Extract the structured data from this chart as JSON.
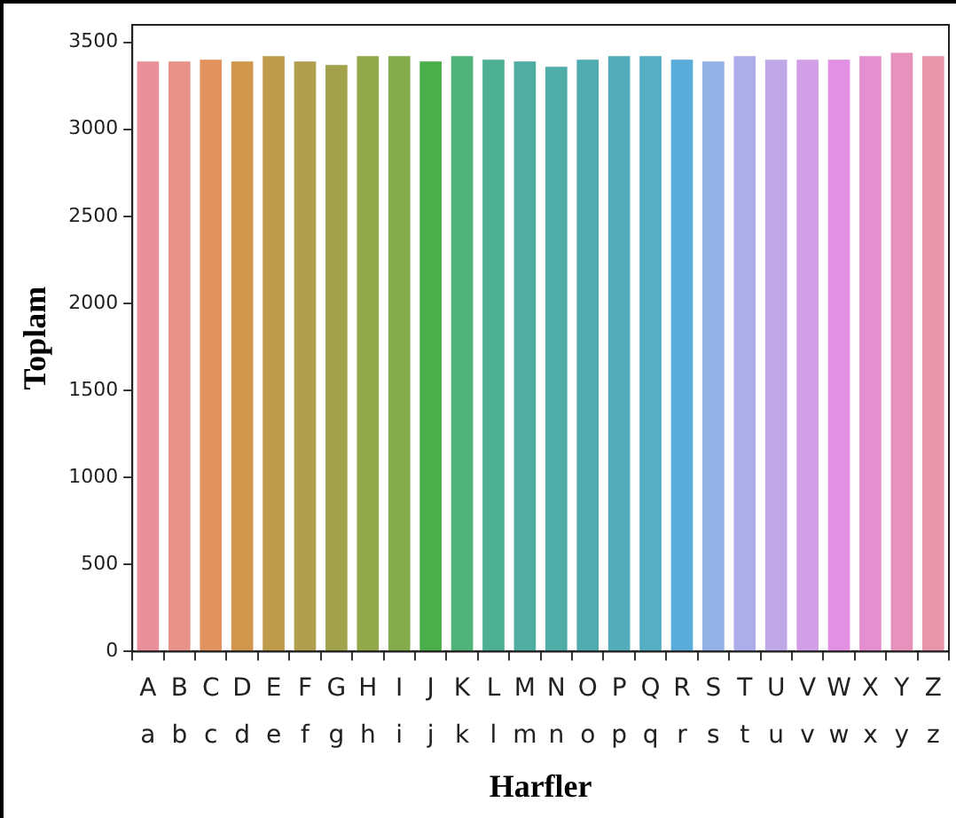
{
  "chart_data": {
    "type": "bar",
    "xlabel": "Harfler",
    "ylabel": "Toplam",
    "categories": [
      "A\na",
      "B\nb",
      "C\nc",
      "D\nd",
      "E\ne",
      "F\nf",
      "G\ng",
      "H\nh",
      "I\ni",
      "J\nj",
      "K\nk",
      "L\nl",
      "M\nm",
      "N\nn",
      "O\no",
      "P\np",
      "Q\nq",
      "R\nr",
      "S\ns",
      "T\nt",
      "U\nu",
      "V\nv",
      "W\nw",
      "X\nx",
      "Y\ny",
      "Z\nz"
    ],
    "values": [
      3400,
      3400,
      3410,
      3400,
      3430,
      3400,
      3380,
      3430,
      3430,
      3400,
      3430,
      3410,
      3400,
      3370,
      3410,
      3430,
      3430,
      3410,
      3400,
      3430,
      3410,
      3410,
      3410,
      3430,
      3450,
      3430
    ],
    "colors": [
      "#e8919b",
      "#e8938a",
      "#e0935e",
      "#d1984d",
      "#bf9b4c",
      "#b09f4f",
      "#a1a24b",
      "#93a74b",
      "#83ab4c",
      "#4aae4a",
      "#4fb37a",
      "#4eb092",
      "#4fae9f",
      "#4fada8",
      "#50acb0",
      "#52acba",
      "#55aec4",
      "#5aacdb",
      "#94b2e6",
      "#adaee9",
      "#c0a8e8",
      "#d39fe6",
      "#e290e3",
      "#e58fd0",
      "#e692bd",
      "#e795a8"
    ],
    "ylim": [
      0,
      3600
    ],
    "yticks": [
      0,
      500,
      1000,
      1500,
      2000,
      2500,
      3000,
      3500
    ],
    "grid": false
  }
}
